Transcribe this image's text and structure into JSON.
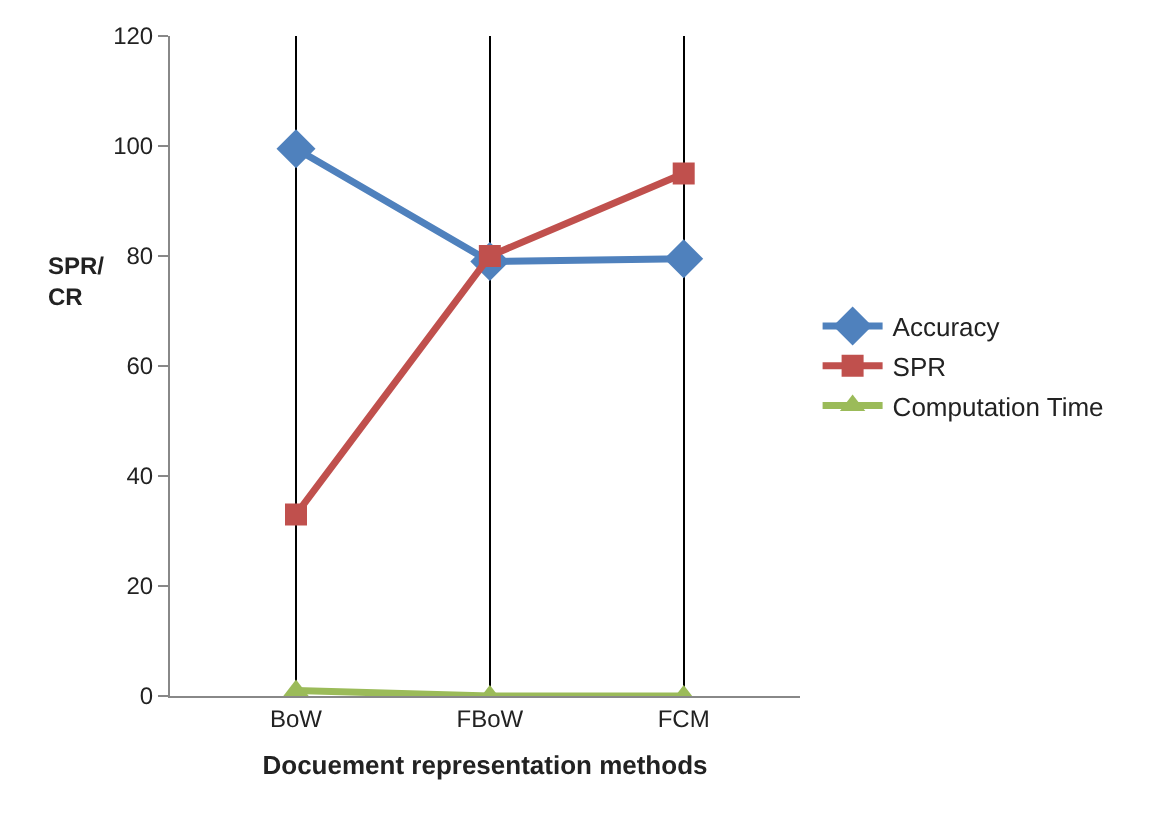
{
  "chart_data": {
    "type": "line",
    "xlabel": "Docuement representation methods",
    "ylabel": "SPR/\nCR",
    "categories": [
      "BoW",
      "FBoW",
      "FCM"
    ],
    "series": [
      {
        "name": "Accuracy",
        "color": "#4f81bd",
        "marker": "diamond",
        "values": [
          99.5,
          79,
          79.5
        ]
      },
      {
        "name": "SPR",
        "color": "#c0504d",
        "marker": "square",
        "values": [
          33,
          80,
          95
        ]
      },
      {
        "name": "Computation Time",
        "color": "#9bbb59",
        "marker": "triangle",
        "values": [
          1,
          0,
          0
        ]
      }
    ],
    "ylim": [
      0,
      120
    ],
    "yticks": [
      0,
      20,
      40,
      60,
      80,
      100,
      120
    ],
    "grid": "x",
    "legend": "right"
  }
}
